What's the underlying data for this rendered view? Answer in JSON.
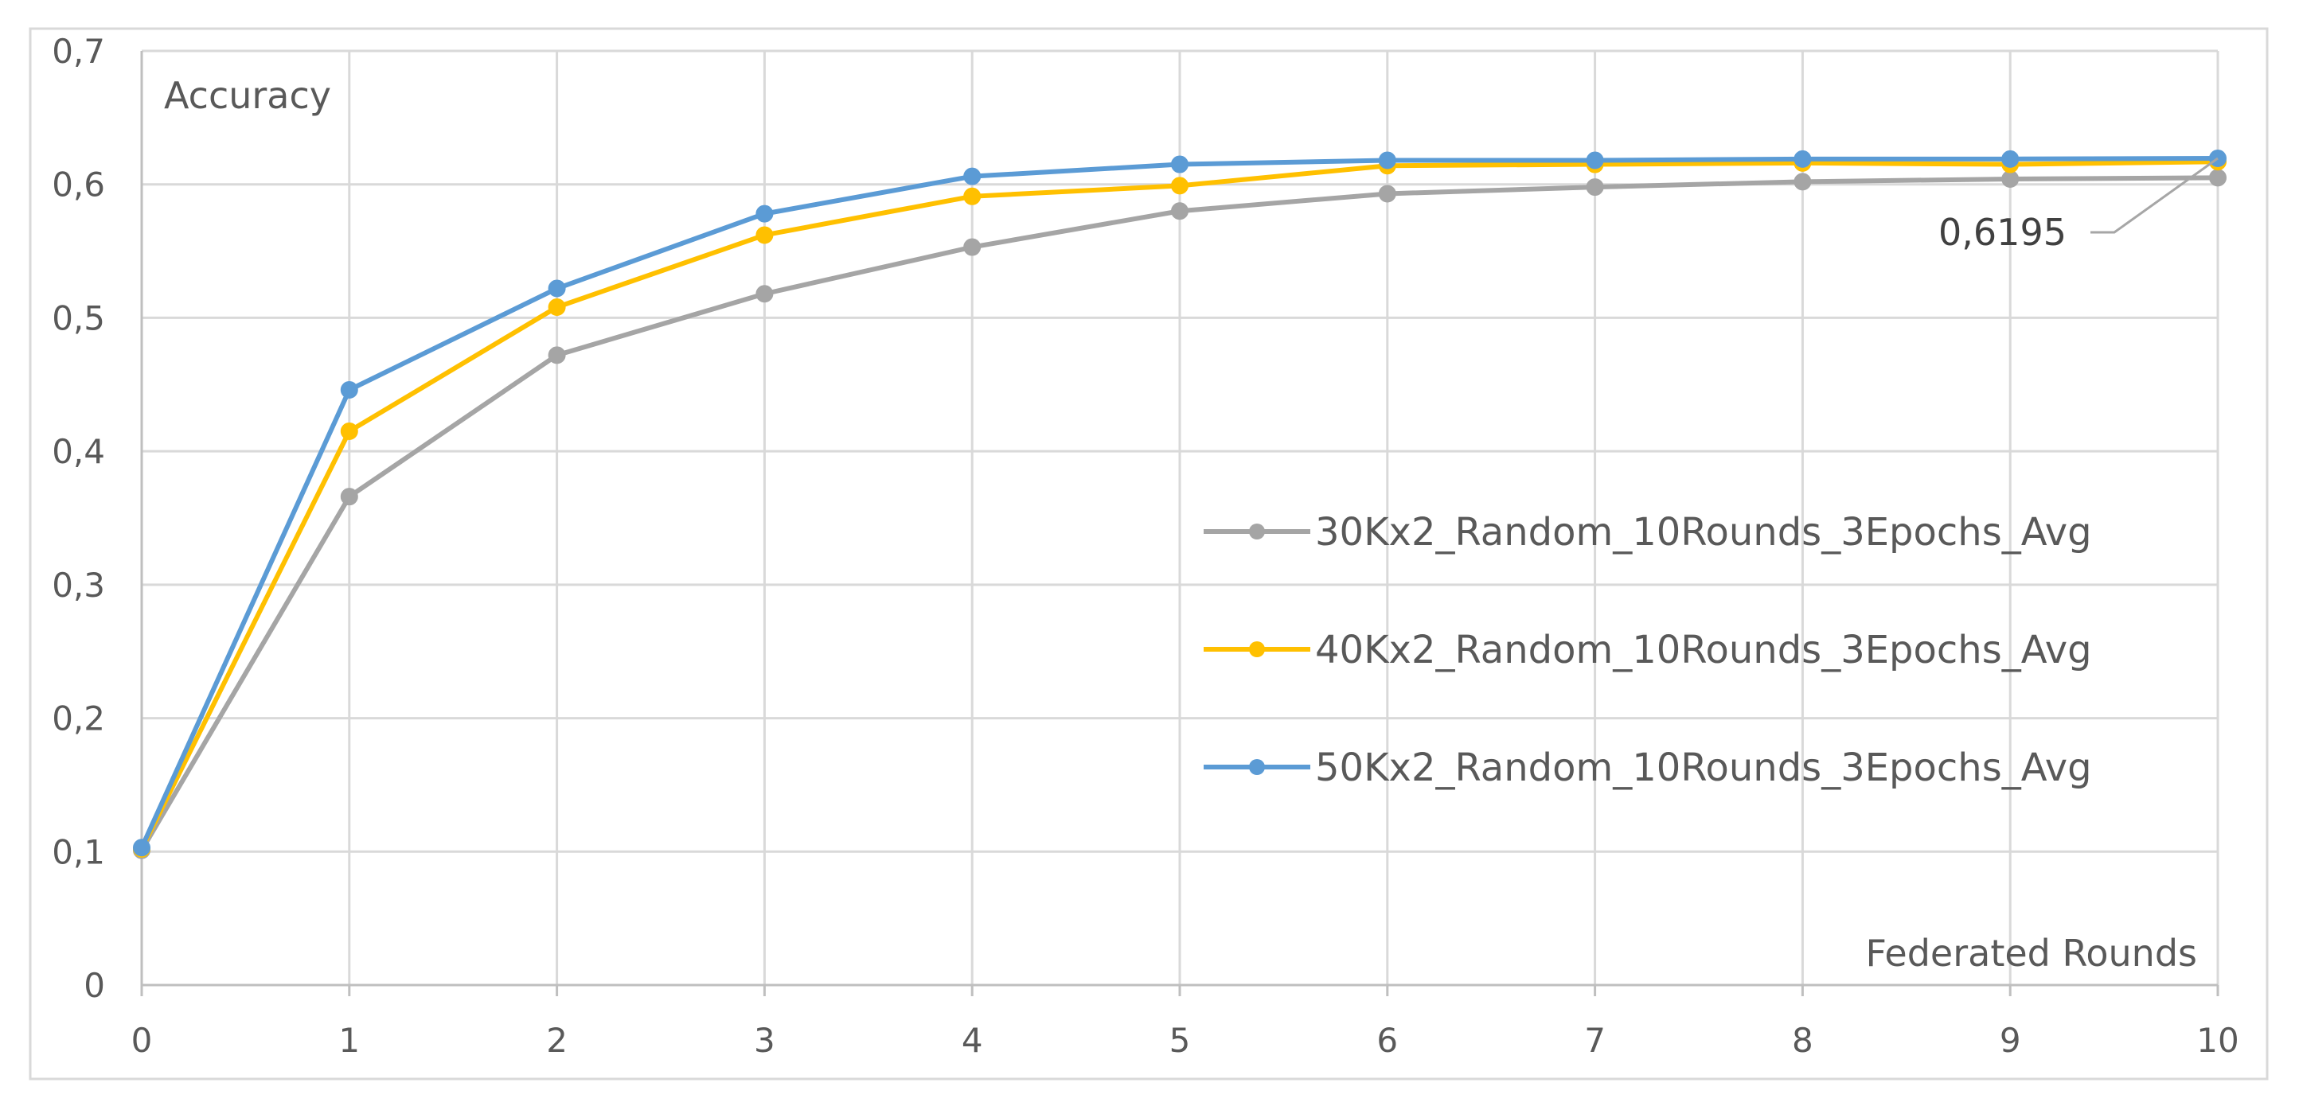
{
  "chart_data": {
    "type": "line",
    "title": "",
    "xlabel": "Federated Rounds",
    "ylabel": "Accuracy",
    "x": [
      0,
      1,
      2,
      3,
      4,
      5,
      6,
      7,
      8,
      9,
      10
    ],
    "x_tick_labels": [
      "0",
      "1",
      "2",
      "3",
      "4",
      "5",
      "6",
      "7",
      "8",
      "9",
      "10"
    ],
    "y_tick_labels": [
      "0",
      "0,1",
      "0,2",
      "0,3",
      "0,4",
      "0,5",
      "0,6",
      "0,7"
    ],
    "y_ticks": [
      0,
      0.1,
      0.2,
      0.3,
      0.4,
      0.5,
      0.6,
      0.7
    ],
    "xlim": [
      0,
      10
    ],
    "ylim": [
      0,
      0.7
    ],
    "grid": true,
    "legend_position": "right",
    "series": [
      {
        "name": "30Kx2_Random_10Rounds_3Epochs_Avg",
        "color": "#A5A5A5",
        "values": [
          0.101,
          0.366,
          0.472,
          0.518,
          0.553,
          0.58,
          0.593,
          0.598,
          0.602,
          0.604,
          0.605
        ]
      },
      {
        "name": "40Kx2_Random_10Rounds_3Epochs_Avg",
        "color": "#FFC000",
        "values": [
          0.102,
          0.415,
          0.508,
          0.562,
          0.591,
          0.599,
          0.614,
          0.615,
          0.616,
          0.615,
          0.617
        ]
      },
      {
        "name": "50Kx2_Random_10Rounds_3Epochs_Avg",
        "color": "#5B9BD5",
        "values": [
          0.103,
          0.446,
          0.522,
          0.578,
          0.606,
          0.615,
          0.618,
          0.618,
          0.619,
          0.619,
          0.6195
        ]
      }
    ],
    "annotations": [
      {
        "text": "0,6195",
        "series": 2,
        "x": 10,
        "y": 0.6195
      }
    ]
  }
}
